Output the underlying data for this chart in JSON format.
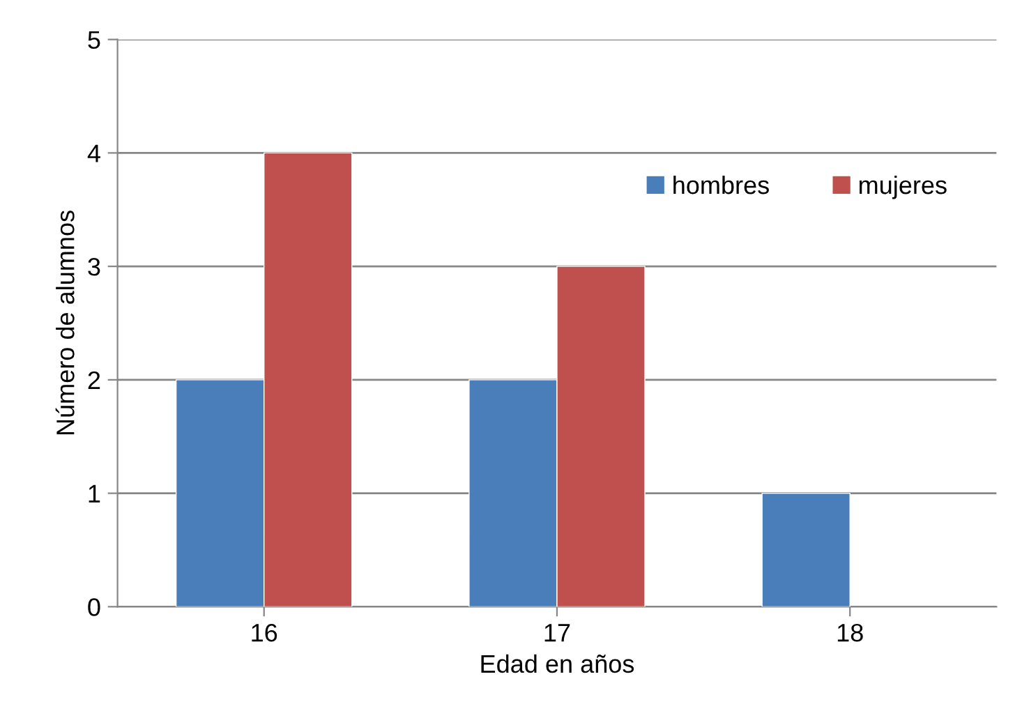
{
  "chart_data": {
    "type": "bar",
    "xlabel": "Edad en años",
    "ylabel": "Número de alumnos",
    "categories": [
      "16",
      "17",
      "18"
    ],
    "series": [
      {
        "name": "hombres",
        "color": "#4a7ebb",
        "values": [
          2,
          2,
          1
        ]
      },
      {
        "name": "mujeres",
        "color": "#c0504d",
        "values": [
          4,
          3,
          null
        ]
      }
    ],
    "ylim": [
      0,
      5
    ],
    "yticks": [
      0,
      1,
      2,
      3,
      4,
      5
    ],
    "grid": "y",
    "legend": "top right"
  }
}
